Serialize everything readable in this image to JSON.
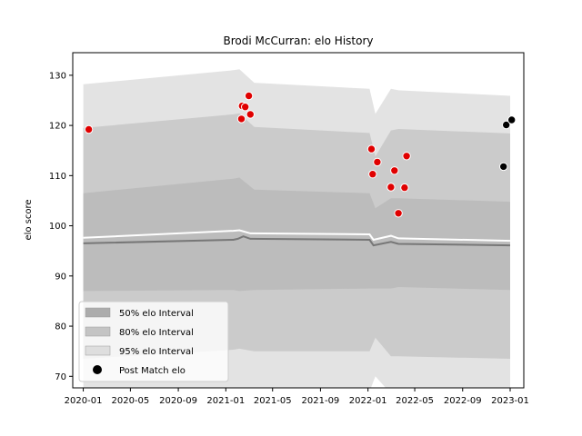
{
  "chart_data": {
    "type": "scatter",
    "title": "Brodi McCurran: elo History",
    "xlabel": "",
    "ylabel": "elo score",
    "xlim": [
      "2019-12-05",
      "2023-02-05"
    ],
    "ylim": [
      67.7,
      134.5
    ],
    "x_ticks": [
      "2020-01",
      "2020-05",
      "2020-09",
      "2021-01",
      "2021-05",
      "2021-09",
      "2022-01",
      "2022-05",
      "2022-09",
      "2023-01"
    ],
    "y_ticks": [
      70,
      80,
      90,
      100,
      110,
      120,
      130
    ],
    "grid": false,
    "legend_position": "lower-left",
    "legend": [
      "50% elo Interval",
      "80% elo Interval",
      "95% elo Interval",
      "Post Match elo"
    ],
    "bands": [
      {
        "name": "95% elo Interval",
        "color": "#e3e3e3",
        "x": [
          "2020-01-01",
          "2021-01-20",
          "2021-02-05",
          "2021-03-15",
          "2022-01-05",
          "2022-01-20",
          "2022-03-01",
          "2022-03-20",
          "2023-01-01"
        ],
        "upper": [
          128.2,
          131.0,
          131.2,
          128.5,
          127.3,
          122.3,
          127.3,
          127.0,
          125.9
        ],
        "lower": [
          65.0,
          67.3,
          67.5,
          67.0,
          67.0,
          70.0,
          66.5,
          66.5,
          65.0
        ]
      },
      {
        "name": "80% elo Interval",
        "color": "#cbcbcb",
        "x": [
          "2020-01-01",
          "2021-01-20",
          "2021-02-05",
          "2021-03-15",
          "2022-01-05",
          "2022-01-20",
          "2022-03-01",
          "2022-03-20",
          "2023-01-01"
        ],
        "upper": [
          119.5,
          122.2,
          122.4,
          119.7,
          118.5,
          113.8,
          119.0,
          119.3,
          118.4
        ],
        "lower": [
          73.5,
          75.3,
          75.5,
          75.0,
          75.0,
          77.7,
          74.0,
          74.0,
          73.5
        ]
      },
      {
        "name": "50% elo Interval",
        "color": "#bcbcbc",
        "x": [
          "2020-01-01",
          "2021-01-20",
          "2021-02-05",
          "2021-03-15",
          "2022-01-05",
          "2022-01-20",
          "2022-03-01",
          "2022-03-20",
          "2023-01-01"
        ],
        "upper": [
          106.5,
          109.4,
          109.6,
          107.2,
          106.5,
          103.5,
          105.5,
          105.5,
          104.8
        ],
        "lower": [
          87.0,
          87.2,
          87.0,
          87.2,
          87.5,
          87.5,
          87.5,
          87.8,
          87.2
        ]
      }
    ],
    "lines": [
      {
        "name": "mean",
        "color": "#ffffff",
        "x": [
          "2020-01-01",
          "2021-01-20",
          "2021-02-05",
          "2021-03-05",
          "2022-01-05",
          "2022-01-15",
          "2022-03-01",
          "2022-03-20",
          "2023-01-01"
        ],
        "y": [
          97.6,
          99.0,
          99.1,
          98.5,
          98.3,
          97.2,
          98.0,
          97.5,
          97.0
        ]
      },
      {
        "name": "median",
        "color": "#777777",
        "x": [
          "2020-01-01",
          "2021-01-20",
          "2021-02-01",
          "2021-02-15",
          "2021-03-05",
          "2022-01-05",
          "2022-01-15",
          "2022-03-01",
          "2022-03-20",
          "2023-01-01"
        ],
        "y": [
          96.5,
          97.2,
          97.4,
          97.9,
          97.4,
          97.2,
          96.1,
          96.8,
          96.4,
          96.1
        ]
      }
    ],
    "series": [
      {
        "name": "Post Match elo",
        "points": [
          {
            "x": "2020-01-15",
            "y": 119.2
          },
          {
            "x": "2021-02-10",
            "y": 121.3
          },
          {
            "x": "2021-02-12",
            "y": 123.9
          },
          {
            "x": "2021-02-20",
            "y": 123.7
          },
          {
            "x": "2021-03-01",
            "y": 125.9
          },
          {
            "x": "2021-03-05",
            "y": 122.2
          },
          {
            "x": "2022-01-10",
            "y": 115.3
          },
          {
            "x": "2022-01-13",
            "y": 110.3
          },
          {
            "x": "2022-01-25",
            "y": 112.7
          },
          {
            "x": "2022-03-01",
            "y": 107.7
          },
          {
            "x": "2022-03-10",
            "y": 111.0
          },
          {
            "x": "2022-03-20",
            "y": 102.5
          },
          {
            "x": "2022-04-05",
            "y": 107.6
          },
          {
            "x": "2022-04-10",
            "y": 113.9
          },
          {
            "x": "2022-12-15",
            "y": 111.8
          },
          {
            "x": "2022-12-22",
            "y": 120.1
          },
          {
            "x": "2023-01-05",
            "y": 121.1
          }
        ]
      }
    ]
  }
}
